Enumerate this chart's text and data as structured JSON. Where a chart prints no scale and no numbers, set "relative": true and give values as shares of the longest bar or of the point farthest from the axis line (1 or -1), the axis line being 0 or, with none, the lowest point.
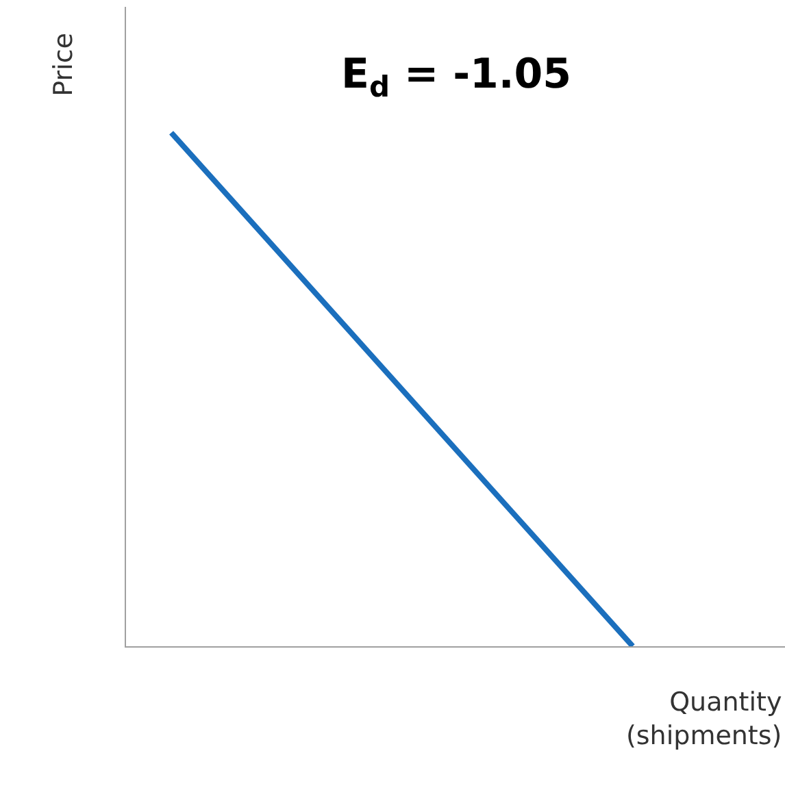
{
  "chart_data": {
    "type": "line",
    "relative": true,
    "xlabel": "Quantity\n(shipments)",
    "ylabel": "Price",
    "annotations": [
      "E$_{d}$ = -1.05"
    ],
    "categories": [
      null,
      null
    ],
    "series": [
      {
        "color": "#1b6fbd",
        "values": [
          1,
          0
        ]
      }
    ],
    "marker": "none",
    "line_style": "solid"
  }
}
